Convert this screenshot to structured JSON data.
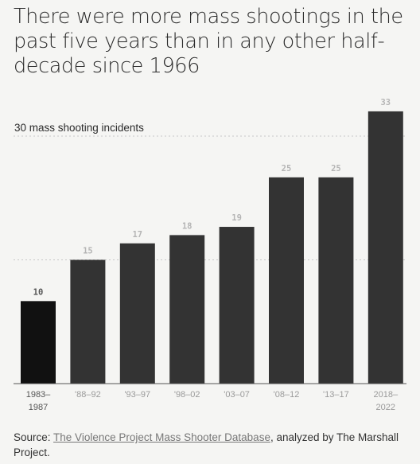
{
  "title": "There were more mass shootings in the past five years than in any other half-decade since 1966",
  "chart_data": {
    "type": "bar",
    "categories": [
      "1983–1987",
      "'88–92",
      "'93–97",
      "'98–02",
      "'03–07",
      "'08–12",
      "'13–17",
      "2018–2022"
    ],
    "values": [
      10,
      15,
      17,
      18,
      19,
      25,
      25,
      33
    ],
    "reference_line": {
      "value": 30,
      "label": "30 mass shooting incidents"
    },
    "gridlines": [
      15,
      30
    ],
    "ylim": [
      0,
      35
    ],
    "grid": true,
    "colors": {
      "first_bar": "#111111",
      "bars": "#333333",
      "value_labels": "#b5b5b5",
      "first_value_label": "#555555",
      "tick_labels": "#9a9a9a"
    }
  },
  "source": {
    "prefix": "Source: ",
    "link_text": "The Violence Project Mass Shooter Database",
    "suffix": ", analyzed by The Marshall Project."
  }
}
